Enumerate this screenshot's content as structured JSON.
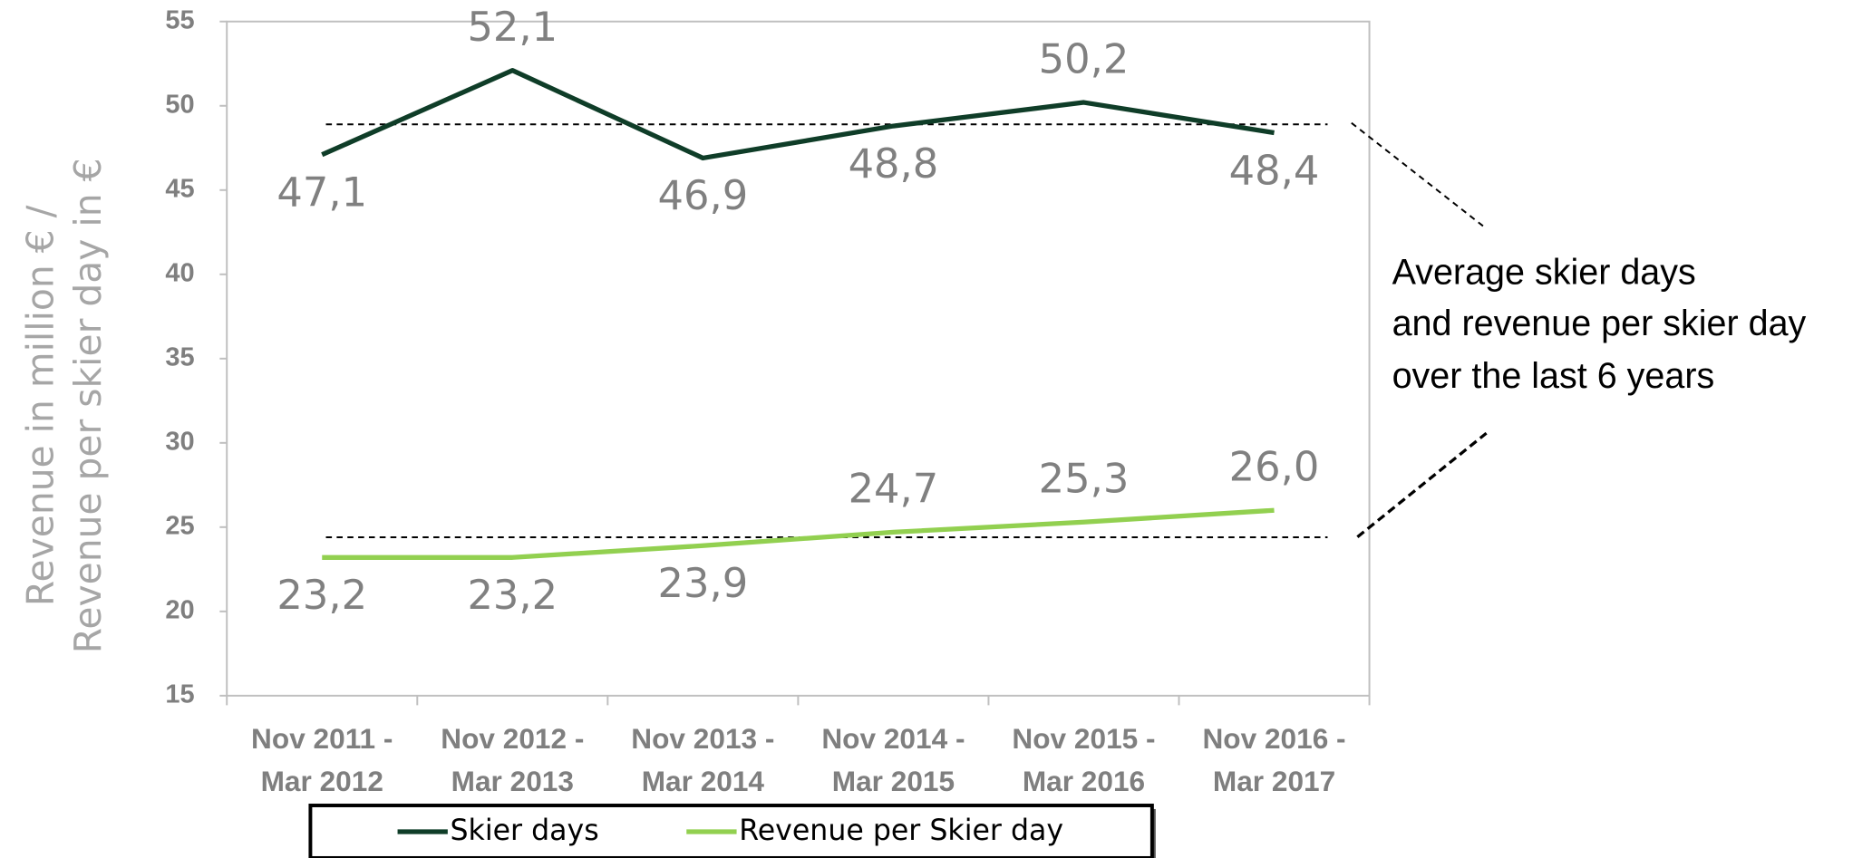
{
  "chart_data": {
    "type": "line",
    "y_label_lines": [
      "Revenue in million  € /",
      "Revenue per skier day in €"
    ],
    "categories": [
      "Nov 2011 - Mar 2012",
      "Nov 2012 - Mar 2013",
      "Nov 2013 - Mar 2014",
      "Nov 2014 - Mar 2015",
      "Nov 2015 - Mar 2016",
      "Nov 2016 - Mar 2017"
    ],
    "series": [
      {
        "name": "Skier days",
        "color": "#0f3d28",
        "values": [
          47.1,
          52.1,
          46.9,
          48.8,
          50.2,
          48.4
        ],
        "value_labels": [
          "47,1",
          "52,1",
          "46,9",
          "48,8",
          "50,2",
          "48,4"
        ]
      },
      {
        "name": "Revenue per Skier day",
        "color": "#92d050",
        "values": [
          23.2,
          23.2,
          23.9,
          24.7,
          25.3,
          26.0
        ],
        "value_labels": [
          "23,2",
          "23,2",
          "23,9",
          "24,7",
          "25,3",
          "26,0"
        ]
      }
    ],
    "averages": [
      48.9,
      24.4
    ],
    "annotation": [
      "Average skier days",
      "and revenue per skier day",
      "over the last 6 years"
    ],
    "ylim": [
      15,
      55
    ],
    "yticks": [
      15,
      20,
      25,
      30,
      35,
      40,
      45,
      50,
      55
    ]
  }
}
